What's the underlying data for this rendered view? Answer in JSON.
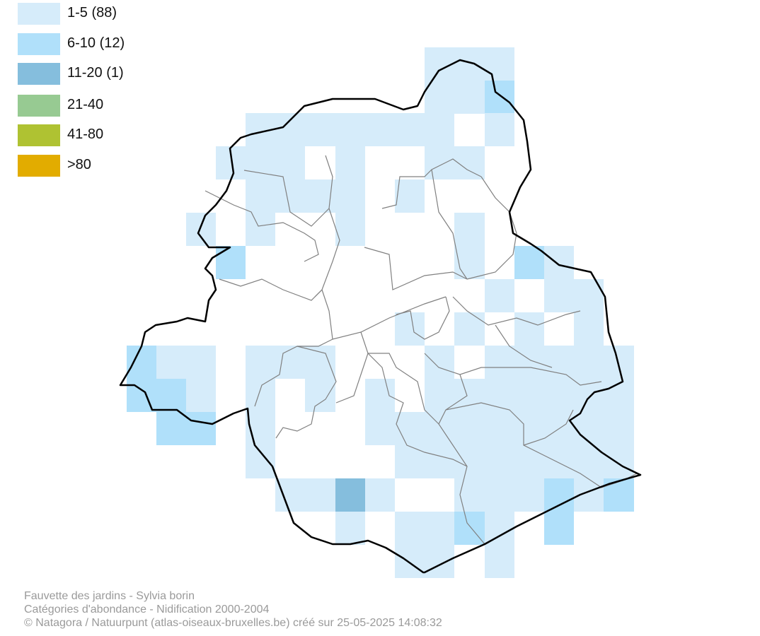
{
  "legend": {
    "items": [
      {
        "label": "1-5 (88)",
        "color": "#d6ecfa"
      },
      {
        "label": "6-10 (12)",
        "color": "#b0e0fa"
      },
      {
        "label": "11-20 (1)",
        "color": "#85bedd"
      },
      {
        "label": "21-40",
        "color": "#97ca92"
      },
      {
        "label": "41-80",
        "color": "#afc232"
      },
      {
        "label": ">80",
        "color": "#e2ac00"
      }
    ]
  },
  "map": {
    "border_color": "#000000",
    "commune_line_color": "#808080"
  },
  "credits": {
    "species": "Fauvette des jardins - Sylvia borin",
    "category": "Catégories d'abondance - Nidification 2000-2004",
    "copyright": "© Natagora / Natuurpunt (atlas-oiseaux-bruxelles.be) créé sur 25-05-2025 14:08:32"
  }
}
